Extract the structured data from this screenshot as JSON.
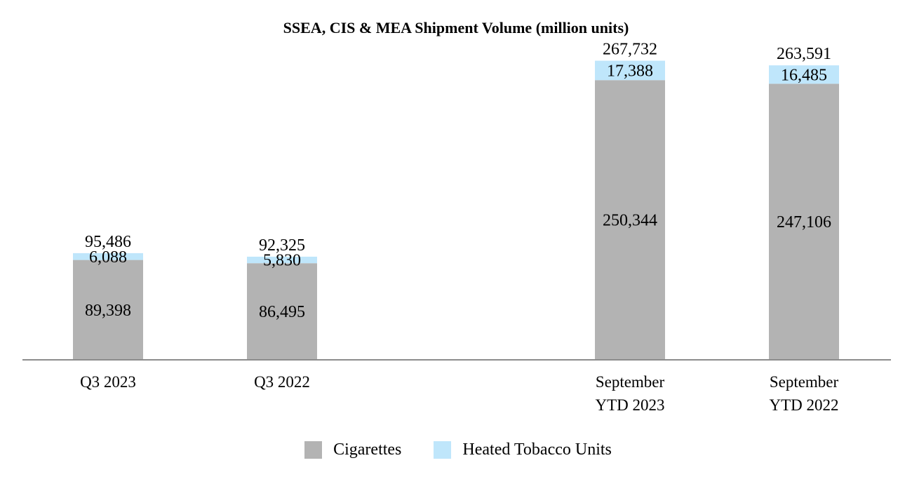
{
  "chart_data": {
    "type": "bar",
    "stacked": true,
    "title": "SSEA, CIS & MEA Shipment Volume (million units)",
    "categories": [
      [
        "Q3 2023"
      ],
      [
        "Q3 2022"
      ],
      [
        "September",
        "YTD 2023"
      ],
      [
        "September",
        "YTD 2022"
      ]
    ],
    "series": [
      {
        "name": "Cigarettes",
        "values": [
          89398,
          86495,
          250344,
          247106
        ],
        "labels": [
          "89,398",
          "86,495",
          "250,344",
          "247,106"
        ],
        "color": "#b3b3b3"
      },
      {
        "name": "Heated Tobacco Units",
        "values": [
          6088,
          5830,
          17388,
          16485
        ],
        "labels": [
          "6,088",
          "5,830",
          "17,388",
          "16,485"
        ],
        "color": "#bfe6fb"
      }
    ],
    "totals": [
      "95,486",
      "92,325",
      "267,732",
      "263,591"
    ],
    "ylim": [
      0,
      280000
    ],
    "legend_position": "bottom",
    "grid": false
  }
}
